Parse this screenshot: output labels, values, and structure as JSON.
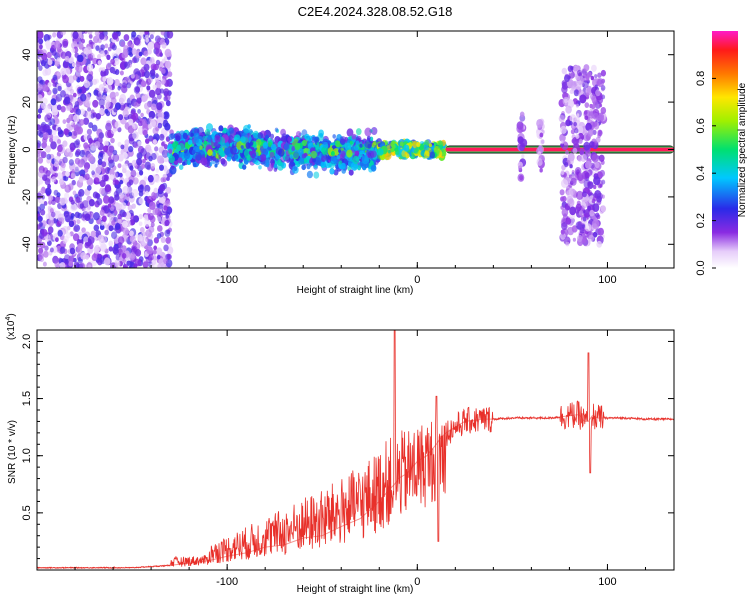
{
  "title": "C2E4.2024.328.08.52.G18",
  "chart_data": [
    {
      "type": "heatmap",
      "id": "spectrogram",
      "xlabel": "Height of straight line (km)",
      "ylabel": "Frequency (Hz)",
      "xlim": [
        -200,
        135
      ],
      "ylim": [
        -50,
        50
      ],
      "x_ticks": [
        -100,
        0,
        100
      ],
      "x_tick_labels": [
        "-100",
        "0",
        "100"
      ],
      "y_ticks": [
        -40,
        -20,
        0,
        20,
        40
      ],
      "y_tick_labels": [
        "-40",
        "-20",
        "0",
        "20",
        "40"
      ],
      "colorbar": {
        "label": "Normalized spectral amplitude",
        "range": [
          0,
          1
        ],
        "ticks": [
          0.0,
          0.2,
          0.4,
          0.6,
          0.8
        ],
        "tick_labels": [
          "0.0",
          "0.2",
          "0.4",
          "0.6",
          "0.8"
        ],
        "colormap": "rainbow (white, purple, blue, cyan, green, yellow, orange, red, magenta)"
      },
      "regions": [
        {
          "x_range": [
            -200,
            -130
          ],
          "freq_range": [
            -50,
            50
          ],
          "amplitude": 0.1,
          "pattern": "broadband scatter"
        },
        {
          "x_range": [
            -130,
            -20
          ],
          "freq_range": [
            -8,
            8
          ],
          "amplitude": 0.35,
          "pattern": "band wandering around 0 Hz"
        },
        {
          "x_range": [
            -20,
            15
          ],
          "freq_range": [
            -3,
            3
          ],
          "amplitude": 0.6,
          "pattern": "narrow band near 0 Hz"
        },
        {
          "x_range": [
            15,
            135
          ],
          "freq_range": [
            0,
            0
          ],
          "amplitude": 0.95,
          "pattern": "strong line at 0 Hz"
        },
        {
          "x_range": [
            76,
            98
          ],
          "freq_range": [
            -40,
            35
          ],
          "amplitude": 0.15,
          "pattern": "broadband bursts"
        },
        {
          "x_range": [
            54,
            56
          ],
          "freq_range": [
            -15,
            15
          ],
          "amplitude": 0.15,
          "pattern": "vertical streak"
        },
        {
          "x_range": [
            64,
            66
          ],
          "freq_range": [
            -12,
            12
          ],
          "amplitude": 0.12,
          "pattern": "vertical streak"
        }
      ]
    },
    {
      "type": "line",
      "id": "snr",
      "xlabel": "Height of straight line (km)",
      "ylabel": "SNR (10 * v/v)",
      "y_scale_label": "(x10",
      "y_scale_exponent": "4",
      "xlim": [
        -200,
        135
      ],
      "ylim": [
        0,
        2.1
      ],
      "x_ticks": [
        -100,
        0,
        100
      ],
      "x_tick_labels": [
        "-100",
        "0",
        "100"
      ],
      "y_ticks": [
        0.5,
        1.0,
        1.5,
        2.0
      ],
      "y_tick_labels": [
        "0.5",
        "1.0",
        "1.5",
        "2.0"
      ],
      "line_color": "#e8302a",
      "series": [
        {
          "x": [
            -200,
            -150,
            -130,
            -120,
            -110,
            -100,
            -90,
            -80,
            -70,
            -60,
            -50,
            -40,
            -30,
            -20,
            -15,
            -12,
            -10,
            -5,
            0,
            5,
            10,
            12,
            15,
            20,
            25,
            30,
            35,
            40,
            50,
            60,
            70,
            80,
            85,
            88,
            90,
            92,
            95,
            100,
            110,
            120,
            135
          ],
          "y": [
            0.02,
            0.02,
            0.04,
            0.06,
            0.08,
            0.12,
            0.15,
            0.2,
            0.22,
            0.28,
            0.3,
            0.38,
            0.45,
            0.6,
            0.7,
            0.75,
            0.8,
            0.85,
            0.95,
            1.0,
            1.1,
            1.15,
            1.2,
            1.25,
            1.3,
            1.31,
            1.32,
            1.32,
            1.33,
            1.33,
            1.33,
            1.35,
            1.36,
            1.3,
            1.3,
            1.35,
            1.33,
            1.33,
            1.33,
            1.32,
            1.32
          ]
        }
      ],
      "annotations": [
        {
          "x": -12,
          "y": 2.1,
          "text": "spike"
        },
        {
          "x": 10,
          "y": 1.52,
          "text": "spike"
        },
        {
          "x": 90,
          "y": 1.9,
          "text": "spike"
        }
      ]
    }
  ]
}
